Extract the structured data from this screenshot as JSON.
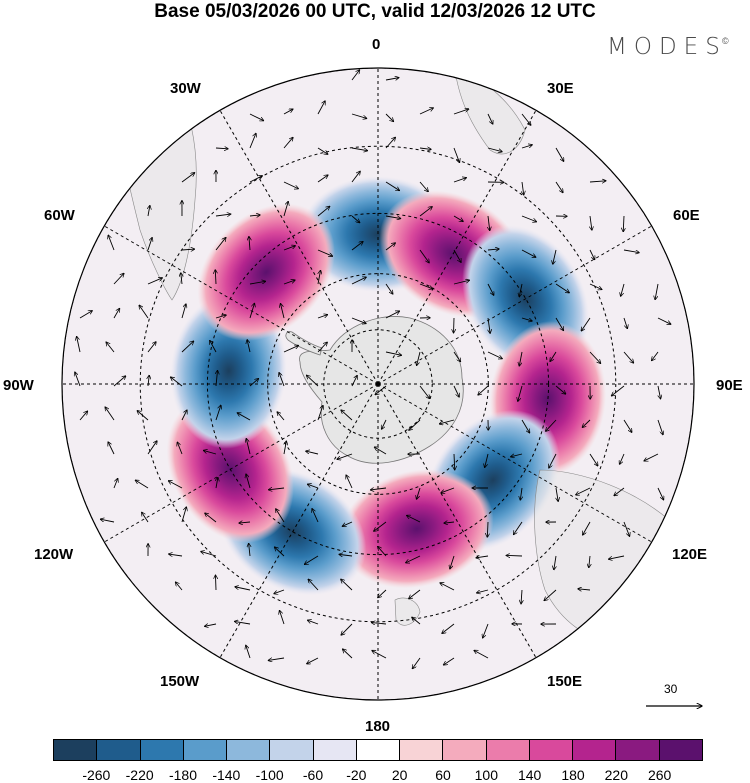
{
  "header": {
    "title": "Base 05/03/2026 00 UTC, valid 12/03/2026 12 UTC",
    "brand": "MODES",
    "brand_mark": "©"
  },
  "map": {
    "projection": "south-polar-stereographic",
    "lon_labels": {
      "lon_0": "0",
      "lon_30e": "30E",
      "lon_60e": "60E",
      "lon_90e": "90E",
      "lon_120e": "120E",
      "lon_150e": "150E",
      "lon_180": "180",
      "lon_150w": "150W",
      "lon_120w": "120W",
      "lon_90w": "90W",
      "lon_60w": "60W",
      "lon_30w": "30W"
    },
    "wind_reference": "30",
    "anomaly_centers": [
      {
        "lon": 0,
        "lat": -50,
        "sign": "negative"
      },
      {
        "lon": 30,
        "lat": -50,
        "sign": "positive"
      },
      {
        "lon": 60,
        "lat": -45,
        "sign": "negative"
      },
      {
        "lon": 95,
        "lat": -45,
        "sign": "positive"
      },
      {
        "lon": 130,
        "lat": -50,
        "sign": "negative"
      },
      {
        "lon": 165,
        "lat": -50,
        "sign": "positive"
      },
      {
        "lon": -150,
        "lat": -45,
        "sign": "negative"
      },
      {
        "lon": -120,
        "lat": -45,
        "sign": "positive"
      },
      {
        "lon": -85,
        "lat": -50,
        "sign": "negative"
      },
      {
        "lon": -45,
        "lat": -48,
        "sign": "positive"
      }
    ]
  },
  "colorbar": {
    "ticks": [
      "-260",
      "-220",
      "-180",
      "-140",
      "-100",
      "-60",
      "-20",
      "20",
      "60",
      "100",
      "140",
      "180",
      "220",
      "260"
    ],
    "colors": [
      "#1c3f5e",
      "#1f5c8c",
      "#2d78ae",
      "#5a9ccb",
      "#8db8dc",
      "#c3d3ea",
      "#e6e6f3",
      "#ffffff",
      "#f8d3d6",
      "#f4abbd",
      "#eb7cab",
      "#d9499c",
      "#b4248e",
      "#8a1a80",
      "#5b116d"
    ]
  }
}
